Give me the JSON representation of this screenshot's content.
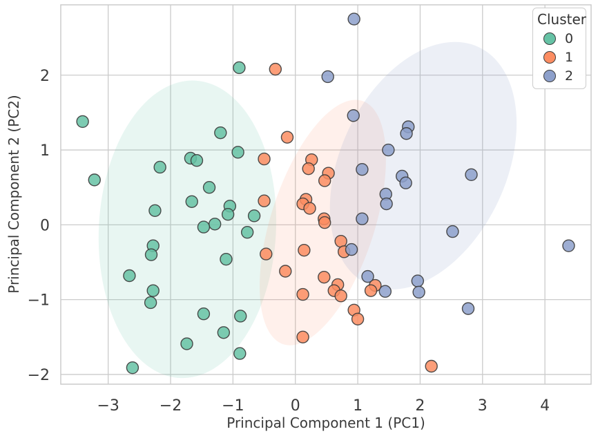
{
  "figure": {
    "kind": "matplotlib-scatter-figure"
  },
  "legend": {
    "title": "Cluster",
    "position": "upper right",
    "items": [
      {
        "label": "0",
        "color": "#66c2a5"
      },
      {
        "label": "1",
        "color": "#fc8d62"
      },
      {
        "label": "2",
        "color": "#8da0cb"
      }
    ]
  },
  "colors": {
    "background": "#ffffff",
    "grid": "#cbcbcb",
    "spine": "#cbcbcb",
    "text": "#3a3a3a",
    "marker_edge": "#3b3b3b"
  },
  "chart_data": {
    "type": "scatter",
    "title": "",
    "xlabel": "Principal Component 1 (PC1)",
    "ylabel": "Principal Component 2 (PC2)",
    "xlim": [
      -3.76,
      4.74
    ],
    "ylim": [
      -2.13,
      2.94
    ],
    "xticks": [
      -3,
      -2,
      -1,
      0,
      1,
      2,
      3,
      4
    ],
    "xtick_labels": [
      "−3",
      "−2",
      "−1",
      "0",
      "1",
      "2",
      "3",
      "4"
    ],
    "yticks": [
      -2,
      -1,
      0,
      1,
      2
    ],
    "ytick_labels": [
      "−2",
      "−1",
      "0",
      "1",
      "2"
    ],
    "grid": true,
    "legend_title": "Cluster",
    "legend_position": "upper right",
    "series": [
      {
        "name": "0",
        "color": "#66c2a5",
        "ellipse": {
          "cx": -1.73,
          "cy": -0.06,
          "rx": 1.42,
          "ry": 1.99,
          "angle_deg": 3,
          "alpha": 0.15
        },
        "points": [
          [
            -3.41,
            1.38
          ],
          [
            -3.22,
            0.6
          ],
          [
            -0.9,
            2.1
          ],
          [
            -1.2,
            1.23
          ],
          [
            -2.17,
            0.77
          ],
          [
            -1.68,
            0.89
          ],
          [
            -1.58,
            0.86
          ],
          [
            -0.92,
            0.97
          ],
          [
            -1.38,
            0.5
          ],
          [
            -2.25,
            0.19
          ],
          [
            -1.66,
            0.31
          ],
          [
            -1.05,
            0.25
          ],
          [
            -1.08,
            0.14
          ],
          [
            -0.66,
            0.12
          ],
          [
            -1.29,
            0.01
          ],
          [
            -1.47,
            -0.03
          ],
          [
            -0.77,
            -0.1
          ],
          [
            -2.28,
            -0.28
          ],
          [
            -2.31,
            -0.4
          ],
          [
            -1.11,
            -0.46
          ],
          [
            -2.66,
            -0.68
          ],
          [
            -2.28,
            -0.88
          ],
          [
            -2.32,
            -1.04
          ],
          [
            -1.47,
            -1.19
          ],
          [
            -0.88,
            -1.22
          ],
          [
            -1.15,
            -1.44
          ],
          [
            -1.74,
            -1.59
          ],
          [
            -0.89,
            -1.72
          ],
          [
            -2.61,
            -1.91
          ]
        ]
      },
      {
        "name": "1",
        "color": "#fc8d62",
        "ellipse": {
          "cx": 0.44,
          "cy": 0.03,
          "rx": 0.83,
          "ry": 1.71,
          "angle_deg": 18,
          "alpha": 0.13
        },
        "points": [
          [
            -0.32,
            2.08
          ],
          [
            -0.13,
            1.17
          ],
          [
            -0.5,
            0.88
          ],
          [
            0.26,
            0.87
          ],
          [
            0.21,
            0.75
          ],
          [
            0.53,
            0.69
          ],
          [
            0.47,
            0.59
          ],
          [
            -0.5,
            0.32
          ],
          [
            0.17,
            0.34
          ],
          [
            0.12,
            0.28
          ],
          [
            0.23,
            0.22
          ],
          [
            0.46,
            0.08
          ],
          [
            0.47,
            0.03
          ],
          [
            0.73,
            -0.22
          ],
          [
            0.78,
            -0.36
          ],
          [
            0.14,
            -0.34
          ],
          [
            -0.47,
            -0.39
          ],
          [
            -0.16,
            -0.62
          ],
          [
            0.46,
            -0.7
          ],
          [
            0.68,
            -0.8
          ],
          [
            0.62,
            -0.88
          ],
          [
            0.73,
            -0.95
          ],
          [
            0.12,
            -0.93
          ],
          [
            1.28,
            -0.81
          ],
          [
            1.21,
            -0.88
          ],
          [
            0.94,
            -1.14
          ],
          [
            1.0,
            -1.26
          ],
          [
            0.12,
            -1.5
          ],
          [
            2.18,
            -1.89
          ]
        ]
      },
      {
        "name": "2",
        "color": "#8da0cb",
        "ellipse": {
          "cx": 2.05,
          "cy": 0.79,
          "rx": 1.33,
          "ry": 1.75,
          "angle_deg": 25,
          "alpha": 0.17
        },
        "points": [
          [
            0.94,
            2.75
          ],
          [
            0.52,
            1.98
          ],
          [
            0.93,
            1.46
          ],
          [
            1.81,
            1.31
          ],
          [
            1.78,
            1.22
          ],
          [
            1.49,
            1.0
          ],
          [
            1.07,
            0.74
          ],
          [
            1.71,
            0.65
          ],
          [
            1.77,
            0.56
          ],
          [
            2.82,
            0.67
          ],
          [
            1.45,
            0.41
          ],
          [
            1.46,
            0.28
          ],
          [
            1.07,
            0.08
          ],
          [
            0.9,
            -0.33
          ],
          [
            2.52,
            -0.09
          ],
          [
            4.38,
            -0.28
          ],
          [
            1.16,
            -0.69
          ],
          [
            1.44,
            -0.89
          ],
          [
            1.96,
            -0.75
          ],
          [
            1.98,
            -0.9
          ],
          [
            2.77,
            -1.12
          ]
        ]
      }
    ]
  }
}
